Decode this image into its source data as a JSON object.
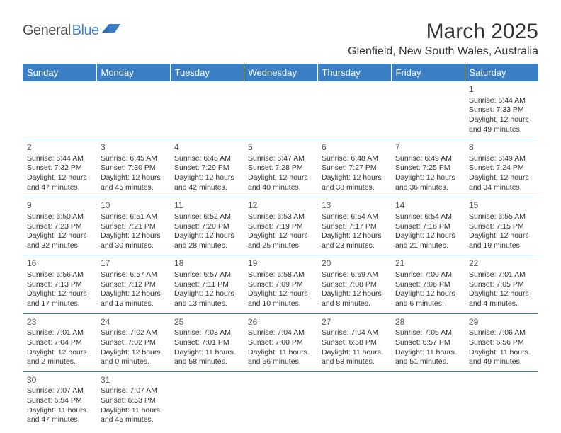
{
  "logo": {
    "text1": "General",
    "text2": "Blue"
  },
  "title": "March 2025",
  "location": "Glenfield, New South Wales, Australia",
  "colors": {
    "header_bg": "#3b7fc4",
    "header_text": "#ffffff",
    "cell_border": "#3b7fc4",
    "text": "#333333",
    "logo_gray": "#4a4a4a",
    "logo_blue": "#3b7fc4"
  },
  "typography": {
    "title_fontsize": 30,
    "location_fontsize": 16,
    "dayheader_fontsize": 13,
    "cell_fontsize": 10.5,
    "daynum_fontsize": 12
  },
  "day_headers": [
    "Sunday",
    "Monday",
    "Tuesday",
    "Wednesday",
    "Thursday",
    "Friday",
    "Saturday"
  ],
  "weeks": [
    [
      null,
      null,
      null,
      null,
      null,
      null,
      {
        "n": "1",
        "sr": "Sunrise: 6:44 AM",
        "ss": "Sunset: 7:33 PM",
        "dl": "Daylight: 12 hours and 49 minutes."
      }
    ],
    [
      {
        "n": "2",
        "sr": "Sunrise: 6:44 AM",
        "ss": "Sunset: 7:32 PM",
        "dl": "Daylight: 12 hours and 47 minutes."
      },
      {
        "n": "3",
        "sr": "Sunrise: 6:45 AM",
        "ss": "Sunset: 7:30 PM",
        "dl": "Daylight: 12 hours and 45 minutes."
      },
      {
        "n": "4",
        "sr": "Sunrise: 6:46 AM",
        "ss": "Sunset: 7:29 PM",
        "dl": "Daylight: 12 hours and 42 minutes."
      },
      {
        "n": "5",
        "sr": "Sunrise: 6:47 AM",
        "ss": "Sunset: 7:28 PM",
        "dl": "Daylight: 12 hours and 40 minutes."
      },
      {
        "n": "6",
        "sr": "Sunrise: 6:48 AM",
        "ss": "Sunset: 7:27 PM",
        "dl": "Daylight: 12 hours and 38 minutes."
      },
      {
        "n": "7",
        "sr": "Sunrise: 6:49 AM",
        "ss": "Sunset: 7:25 PM",
        "dl": "Daylight: 12 hours and 36 minutes."
      },
      {
        "n": "8",
        "sr": "Sunrise: 6:49 AM",
        "ss": "Sunset: 7:24 PM",
        "dl": "Daylight: 12 hours and 34 minutes."
      }
    ],
    [
      {
        "n": "9",
        "sr": "Sunrise: 6:50 AM",
        "ss": "Sunset: 7:23 PM",
        "dl": "Daylight: 12 hours and 32 minutes."
      },
      {
        "n": "10",
        "sr": "Sunrise: 6:51 AM",
        "ss": "Sunset: 7:21 PM",
        "dl": "Daylight: 12 hours and 30 minutes."
      },
      {
        "n": "11",
        "sr": "Sunrise: 6:52 AM",
        "ss": "Sunset: 7:20 PM",
        "dl": "Daylight: 12 hours and 28 minutes."
      },
      {
        "n": "12",
        "sr": "Sunrise: 6:53 AM",
        "ss": "Sunset: 7:19 PM",
        "dl": "Daylight: 12 hours and 25 minutes."
      },
      {
        "n": "13",
        "sr": "Sunrise: 6:54 AM",
        "ss": "Sunset: 7:17 PM",
        "dl": "Daylight: 12 hours and 23 minutes."
      },
      {
        "n": "14",
        "sr": "Sunrise: 6:54 AM",
        "ss": "Sunset: 7:16 PM",
        "dl": "Daylight: 12 hours and 21 minutes."
      },
      {
        "n": "15",
        "sr": "Sunrise: 6:55 AM",
        "ss": "Sunset: 7:15 PM",
        "dl": "Daylight: 12 hours and 19 minutes."
      }
    ],
    [
      {
        "n": "16",
        "sr": "Sunrise: 6:56 AM",
        "ss": "Sunset: 7:13 PM",
        "dl": "Daylight: 12 hours and 17 minutes."
      },
      {
        "n": "17",
        "sr": "Sunrise: 6:57 AM",
        "ss": "Sunset: 7:12 PM",
        "dl": "Daylight: 12 hours and 15 minutes."
      },
      {
        "n": "18",
        "sr": "Sunrise: 6:57 AM",
        "ss": "Sunset: 7:11 PM",
        "dl": "Daylight: 12 hours and 13 minutes."
      },
      {
        "n": "19",
        "sr": "Sunrise: 6:58 AM",
        "ss": "Sunset: 7:09 PM",
        "dl": "Daylight: 12 hours and 10 minutes."
      },
      {
        "n": "20",
        "sr": "Sunrise: 6:59 AM",
        "ss": "Sunset: 7:08 PM",
        "dl": "Daylight: 12 hours and 8 minutes."
      },
      {
        "n": "21",
        "sr": "Sunrise: 7:00 AM",
        "ss": "Sunset: 7:06 PM",
        "dl": "Daylight: 12 hours and 6 minutes."
      },
      {
        "n": "22",
        "sr": "Sunrise: 7:01 AM",
        "ss": "Sunset: 7:05 PM",
        "dl": "Daylight: 12 hours and 4 minutes."
      }
    ],
    [
      {
        "n": "23",
        "sr": "Sunrise: 7:01 AM",
        "ss": "Sunset: 7:04 PM",
        "dl": "Daylight: 12 hours and 2 minutes."
      },
      {
        "n": "24",
        "sr": "Sunrise: 7:02 AM",
        "ss": "Sunset: 7:02 PM",
        "dl": "Daylight: 12 hours and 0 minutes."
      },
      {
        "n": "25",
        "sr": "Sunrise: 7:03 AM",
        "ss": "Sunset: 7:01 PM",
        "dl": "Daylight: 11 hours and 58 minutes."
      },
      {
        "n": "26",
        "sr": "Sunrise: 7:04 AM",
        "ss": "Sunset: 7:00 PM",
        "dl": "Daylight: 11 hours and 56 minutes."
      },
      {
        "n": "27",
        "sr": "Sunrise: 7:04 AM",
        "ss": "Sunset: 6:58 PM",
        "dl": "Daylight: 11 hours and 53 minutes."
      },
      {
        "n": "28",
        "sr": "Sunrise: 7:05 AM",
        "ss": "Sunset: 6:57 PM",
        "dl": "Daylight: 11 hours and 51 minutes."
      },
      {
        "n": "29",
        "sr": "Sunrise: 7:06 AM",
        "ss": "Sunset: 6:56 PM",
        "dl": "Daylight: 11 hours and 49 minutes."
      }
    ],
    [
      {
        "n": "30",
        "sr": "Sunrise: 7:07 AM",
        "ss": "Sunset: 6:54 PM",
        "dl": "Daylight: 11 hours and 47 minutes."
      },
      {
        "n": "31",
        "sr": "Sunrise: 7:07 AM",
        "ss": "Sunset: 6:53 PM",
        "dl": "Daylight: 11 hours and 45 minutes."
      },
      null,
      null,
      null,
      null,
      null
    ]
  ]
}
